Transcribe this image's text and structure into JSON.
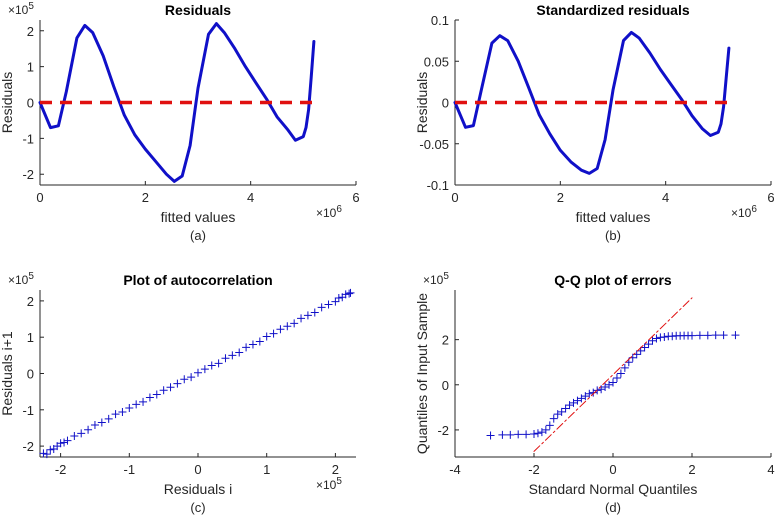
{
  "colors": {
    "series": "#1010c8",
    "reference": "#e01010",
    "axis": "#262626"
  },
  "chart_data": [
    {
      "id": "a",
      "type": "line",
      "title": "Residuals",
      "xlabel": "fitted values",
      "ylabel": "Residuals",
      "caption": "(a)",
      "x_exponent": "×10^6",
      "y_exponent": "×10^5",
      "xlim": [
        0,
        6
      ],
      "ylim": [
        -2.3,
        2.3
      ],
      "xticks": [
        0,
        2,
        4,
        6
      ],
      "yticks": [
        -2,
        -1,
        0,
        1,
        2
      ],
      "xtick_labels": [
        "0",
        "2",
        "4",
        "6"
      ],
      "ytick_labels": [
        "-2",
        "-1",
        "0",
        "1",
        "2"
      ],
      "series": [
        {
          "name": "residuals",
          "x": [
            0,
            0.2,
            0.35,
            0.5,
            0.7,
            0.85,
            1.0,
            1.2,
            1.4,
            1.6,
            1.8,
            2.0,
            2.2,
            2.4,
            2.55,
            2.7,
            2.85,
            3.0,
            3.2,
            3.35,
            3.5,
            3.7,
            3.9,
            4.1,
            4.3,
            4.5,
            4.7,
            4.85,
            5.0,
            5.05,
            5.1,
            5.15,
            5.2
          ],
          "y": [
            0,
            -0.7,
            -0.65,
            0.3,
            1.8,
            2.15,
            1.95,
            1.3,
            0.45,
            -0.35,
            -0.9,
            -1.3,
            -1.65,
            -2.0,
            -2.2,
            -2.05,
            -1.2,
            0.4,
            1.9,
            2.2,
            1.95,
            1.5,
            1.0,
            0.55,
            0.1,
            -0.4,
            -0.75,
            -1.05,
            -0.95,
            -0.7,
            -0.2,
            0.7,
            1.7
          ]
        },
        {
          "name": "zero-line",
          "style": "dashed",
          "x": [
            0,
            5.2
          ],
          "y": [
            0,
            0
          ]
        }
      ]
    },
    {
      "id": "b",
      "type": "line",
      "title": "Standardized residuals",
      "xlabel": "fitted values",
      "ylabel": "Residuals",
      "caption": "(b)",
      "x_exponent": "×10^6",
      "xlim": [
        0,
        6
      ],
      "ylim": [
        -0.1,
        0.1
      ],
      "xticks": [
        0,
        2,
        4,
        6
      ],
      "yticks": [
        -0.1,
        -0.05,
        0,
        0.05,
        0.1
      ],
      "xtick_labels": [
        "0",
        "2",
        "4",
        "6"
      ],
      "ytick_labels": [
        "-0.1",
        "-0.05",
        "0",
        "0.05",
        "0.1"
      ],
      "series": [
        {
          "name": "standardized residuals",
          "x": [
            0,
            0.2,
            0.35,
            0.5,
            0.7,
            0.85,
            1.0,
            1.2,
            1.4,
            1.6,
            1.8,
            2.0,
            2.2,
            2.4,
            2.55,
            2.7,
            2.85,
            3.0,
            3.2,
            3.35,
            3.5,
            3.7,
            3.9,
            4.1,
            4.3,
            4.5,
            4.7,
            4.85,
            5.0,
            5.05,
            5.1,
            5.15,
            5.2
          ],
          "y": [
            0,
            -0.03,
            -0.028,
            0.015,
            0.072,
            0.081,
            0.075,
            0.05,
            0.018,
            -0.015,
            -0.038,
            -0.058,
            -0.072,
            -0.082,
            -0.086,
            -0.08,
            -0.045,
            0.015,
            0.075,
            0.085,
            0.078,
            0.06,
            0.04,
            0.022,
            0.004,
            -0.016,
            -0.032,
            -0.04,
            -0.036,
            -0.026,
            -0.005,
            0.03,
            0.066
          ]
        },
        {
          "name": "zero-line",
          "style": "dashed",
          "x": [
            0,
            5.2
          ],
          "y": [
            0,
            0
          ]
        }
      ]
    },
    {
      "id": "c",
      "type": "scatter",
      "title": "Plot of autocorrelation",
      "xlabel": "Residuals i",
      "ylabel": "Residuals i+1",
      "caption": "(c)",
      "x_exponent": "×10^5",
      "y_exponent": "×10^5",
      "xlim": [
        -2.3,
        2.3
      ],
      "ylim": [
        -2.3,
        2.3
      ],
      "xticks": [
        -2,
        -1,
        0,
        1,
        2
      ],
      "yticks": [
        -2,
        -1,
        0,
        1,
        2
      ],
      "xtick_labels": [
        "-2",
        "-1",
        "0",
        "1",
        "2"
      ],
      "ytick_labels": [
        "-2",
        "-1",
        "0",
        "1",
        "2"
      ],
      "series": [
        {
          "name": "lag pairs",
          "marker": "+",
          "x": [
            -2.25,
            -2.2,
            -2.15,
            -2.1,
            -2.05,
            -2.0,
            -1.95,
            -1.9,
            -1.8,
            -1.7,
            -1.6,
            -1.5,
            -1.4,
            -1.3,
            -1.2,
            -1.1,
            -1.0,
            -0.9,
            -0.8,
            -0.7,
            -0.6,
            -0.5,
            -0.4,
            -0.3,
            -0.2,
            -0.1,
            0.0,
            0.1,
            0.2,
            0.3,
            0.4,
            0.5,
            0.6,
            0.7,
            0.8,
            0.9,
            1.0,
            1.1,
            1.2,
            1.3,
            1.4,
            1.5,
            1.6,
            1.7,
            1.8,
            1.9,
            2.0,
            2.05,
            2.1,
            2.15,
            2.2,
            2.22
          ],
          "y": [
            -2.2,
            -2.22,
            -2.1,
            -2.08,
            -2.0,
            -1.92,
            -1.9,
            -1.85,
            -1.72,
            -1.65,
            -1.55,
            -1.42,
            -1.35,
            -1.25,
            -1.12,
            -1.06,
            -0.95,
            -0.85,
            -0.78,
            -0.66,
            -0.58,
            -0.46,
            -0.38,
            -0.28,
            -0.16,
            -0.1,
            0.02,
            0.12,
            0.22,
            0.28,
            0.42,
            0.5,
            0.58,
            0.72,
            0.8,
            0.88,
            1.02,
            1.1,
            1.22,
            1.3,
            1.38,
            1.52,
            1.6,
            1.68,
            1.82,
            1.9,
            1.98,
            2.08,
            2.1,
            2.18,
            2.2,
            2.22
          ]
        }
      ]
    },
    {
      "id": "d",
      "type": "scatter",
      "title": "Q-Q plot of errors",
      "xlabel": "Standard Normal Quantiles",
      "ylabel": "Quantiles of Input Sample",
      "caption": "(d)",
      "y_exponent": "×10^5",
      "xlim": [
        -4,
        4
      ],
      "ylim": [
        -3.2,
        4.2
      ],
      "xticks": [
        -4,
        -2,
        0,
        2,
        4
      ],
      "yticks": [
        -2,
        0,
        2
      ],
      "xtick_labels": [
        "-4",
        "-2",
        "0",
        "2",
        "4"
      ],
      "ytick_labels": [
        "-2",
        "0",
        "2"
      ],
      "series": [
        {
          "name": "sample quantiles",
          "marker": "+",
          "x": [
            -3.1,
            -2.8,
            -2.6,
            -2.4,
            -2.2,
            -2.0,
            -1.9,
            -1.8,
            -1.7,
            -1.6,
            -1.5,
            -1.4,
            -1.3,
            -1.2,
            -1.1,
            -1.0,
            -0.9,
            -0.8,
            -0.7,
            -0.6,
            -0.5,
            -0.4,
            -0.3,
            -0.2,
            -0.1,
            0.0,
            0.1,
            0.2,
            0.3,
            0.4,
            0.5,
            0.6,
            0.7,
            0.8,
            0.9,
            1.0,
            1.1,
            1.2,
            1.3,
            1.4,
            1.5,
            1.6,
            1.7,
            1.8,
            1.9,
            2.0,
            2.2,
            2.4,
            2.6,
            2.8,
            3.1
          ],
          "y": [
            -2.25,
            -2.22,
            -2.22,
            -2.2,
            -2.2,
            -2.18,
            -2.15,
            -2.1,
            -2.0,
            -1.8,
            -1.5,
            -1.3,
            -1.2,
            -1.05,
            -0.9,
            -0.8,
            -0.7,
            -0.6,
            -0.5,
            -0.4,
            -0.35,
            -0.25,
            -0.2,
            -0.1,
            0.0,
            0.1,
            0.3,
            0.5,
            0.75,
            1.0,
            1.2,
            1.35,
            1.5,
            1.65,
            1.8,
            1.95,
            2.05,
            2.1,
            2.12,
            2.15,
            2.15,
            2.17,
            2.17,
            2.18,
            2.18,
            2.18,
            2.19,
            2.19,
            2.2,
            2.2,
            2.2
          ]
        },
        {
          "name": "reference line",
          "style": "dashdot",
          "x": [
            -2.0,
            2.0
          ],
          "y": [
            -2.95,
            3.85
          ]
        }
      ]
    }
  ]
}
